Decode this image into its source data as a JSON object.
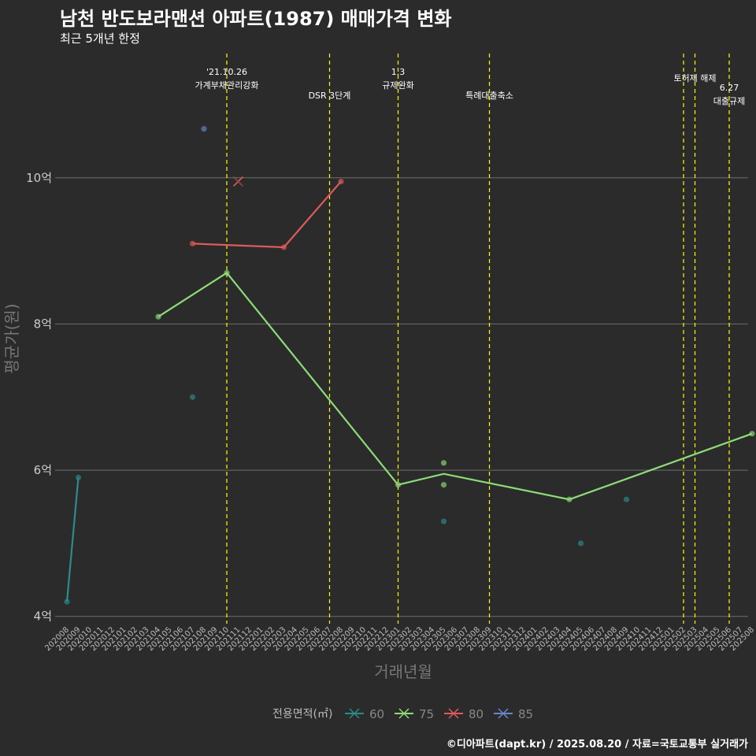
{
  "title": "남천 반도보라맨션 아파트(1987) 매매가격 변화",
  "subtitle": "최근 5개년 한정",
  "caption": "©디아파트(dapt.kr) / 2025.08.20 / 자료=국토교통부 실거래가",
  "chart_data": {
    "type": "line",
    "xlabel": "거래년월",
    "ylabel": "평균가(원)",
    "ylim": [
      3.9,
      11.7
    ],
    "yticks": [
      4,
      6,
      8,
      10
    ],
    "ytick_labels": [
      "4억",
      "6억",
      "8억",
      "10억"
    ],
    "categories": [
      "202008",
      "202009",
      "202010",
      "202011",
      "202012",
      "202101",
      "202102",
      "202103",
      "202104",
      "202105",
      "202106",
      "202107",
      "202108",
      "202109",
      "202110",
      "202111",
      "202112",
      "202201",
      "202202",
      "202203",
      "202204",
      "202205",
      "202206",
      "202207",
      "202208",
      "202209",
      "202210",
      "202211",
      "202212",
      "202301",
      "202302",
      "202303",
      "202304",
      "202305",
      "202306",
      "202307",
      "202308",
      "202309",
      "202310",
      "202311",
      "202312",
      "202401",
      "202402",
      "202403",
      "202404",
      "202405",
      "202406",
      "202407",
      "202408",
      "202409",
      "202410",
      "202411",
      "202412",
      "202501",
      "202502",
      "202503",
      "202504",
      "202505",
      "202506",
      "202507",
      "202508"
    ],
    "series": [
      {
        "name": "60",
        "color": "#2a8c8c",
        "line": [
          {
            "x": "202008",
            "y": 4.2
          },
          {
            "x": "202009",
            "y": 5.9
          }
        ],
        "points": [
          {
            "x": "202008",
            "y": 4.2
          },
          {
            "x": "202009",
            "y": 5.9
          },
          {
            "x": "202107",
            "y": 7.0
          },
          {
            "x": "202305",
            "y": 5.3
          },
          {
            "x": "202405",
            "y": 5.0
          },
          {
            "x": "202409",
            "y": 5.6
          }
        ]
      },
      {
        "name": "75",
        "color": "#8cdc78",
        "line": [
          {
            "x": "202104",
            "y": 8.1
          },
          {
            "x": "202110",
            "y": 8.7
          },
          {
            "x": "202301",
            "y": 5.8
          },
          {
            "x": "202305",
            "y": 5.95
          },
          {
            "x": "202404",
            "y": 5.6
          },
          {
            "x": "202508",
            "y": 6.5
          }
        ],
        "points": [
          {
            "x": "202104",
            "y": 8.1
          },
          {
            "x": "202110",
            "y": 8.7
          },
          {
            "x": "202301",
            "y": 5.8
          },
          {
            "x": "202305",
            "y": 6.1
          },
          {
            "x": "202305",
            "y": 5.8
          },
          {
            "x": "202404",
            "y": 5.6
          },
          {
            "x": "202508",
            "y": 6.5
          }
        ]
      },
      {
        "name": "80",
        "color": "#e05a5a",
        "line": [
          {
            "x": "202107",
            "y": 9.1
          },
          {
            "x": "202203",
            "y": 9.05
          },
          {
            "x": "202208",
            "y": 9.95
          }
        ],
        "points": [
          {
            "x": "202107",
            "y": 9.1
          },
          {
            "x": "202203",
            "y": 9.05
          },
          {
            "x": "202208",
            "y": 9.95
          }
        ],
        "crosses": [
          {
            "x": "202111",
            "y": 9.95
          }
        ]
      },
      {
        "name": "85",
        "color": "#6688cc",
        "line": [],
        "points": [
          {
            "x": "202108",
            "y": 10.67
          }
        ]
      }
    ],
    "events": [
      {
        "x": "202110",
        "lines": [
          "'21.10.26",
          "가계부채관리강화"
        ],
        "level": 0
      },
      {
        "x": "202207",
        "lines": [
          "DSR 3단계"
        ],
        "level": 1
      },
      {
        "x": "202301",
        "lines": [
          "1.3",
          "규제완화"
        ],
        "level": 0
      },
      {
        "x": "202309",
        "lines": [
          "특례대출축소"
        ],
        "level": 1
      },
      {
        "x": "202502",
        "lines": [],
        "level": 0
      },
      {
        "x": "202503",
        "lines": [
          "토허제 해제"
        ],
        "level": 0
      },
      {
        "x": "202506",
        "lines": [
          "6.27",
          "대출규제"
        ],
        "level": 2
      }
    ],
    "legend": {
      "title": "전용면적(㎡)",
      "entries": [
        "60",
        "75",
        "80",
        "85"
      ]
    },
    "event_color": "#ffff00",
    "grid_color": "#6e6e6e"
  }
}
